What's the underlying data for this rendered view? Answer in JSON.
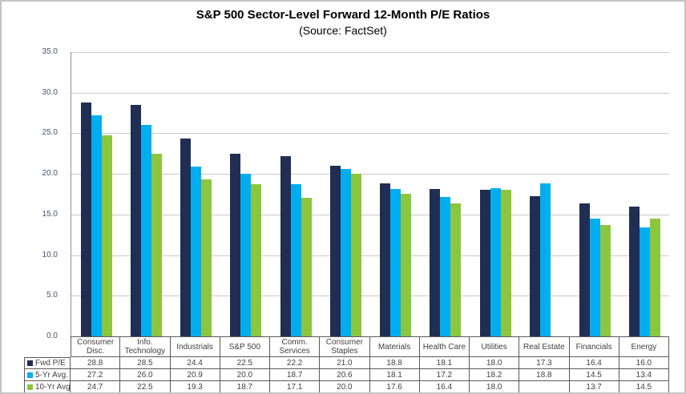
{
  "chart_data": {
    "type": "bar",
    "title": "S&P 500 Sector-Level Forward 12-Month P/E Ratios",
    "subtitle": "(Source: FactSet)",
    "categories": [
      "Consumer Disc.",
      "Info. Technology",
      "Industrials",
      "S&P 500",
      "Comm. Services",
      "Consumer Staples",
      "Materials",
      "Health Care",
      "Utilities",
      "Real Estate",
      "Financials",
      "Energy"
    ],
    "series": [
      {
        "name": "Fwd P/E",
        "color": "#1F2E52",
        "values": [
          28.8,
          28.5,
          24.4,
          22.5,
          22.2,
          21.0,
          18.8,
          18.1,
          18.0,
          17.3,
          16.4,
          16.0
        ]
      },
      {
        "name": "5-Yr Avg.",
        "color": "#00AEEF",
        "values": [
          27.2,
          26.0,
          20.9,
          20.0,
          18.7,
          20.6,
          18.1,
          17.2,
          18.2,
          18.8,
          14.5,
          13.4
        ]
      },
      {
        "name": "10-Yr Avg.",
        "color": "#8CC63E",
        "values": [
          24.7,
          22.5,
          19.3,
          18.7,
          17.1,
          20.0,
          17.6,
          16.4,
          18.0,
          null,
          13.7,
          14.5
        ]
      }
    ],
    "ylim": [
      0,
      35
    ],
    "ytick_step": 5,
    "ytick_labels": [
      "35.0",
      "30.0",
      "25.0",
      "20.0",
      "15.0",
      "10.0",
      "5.0",
      "0.0"
    ],
    "grid": true,
    "legend_position": "left-of-data-table",
    "colors": {
      "gridline": "#c9c9c9",
      "axis": "#8f8f8f",
      "table_border": "#595959"
    }
  }
}
